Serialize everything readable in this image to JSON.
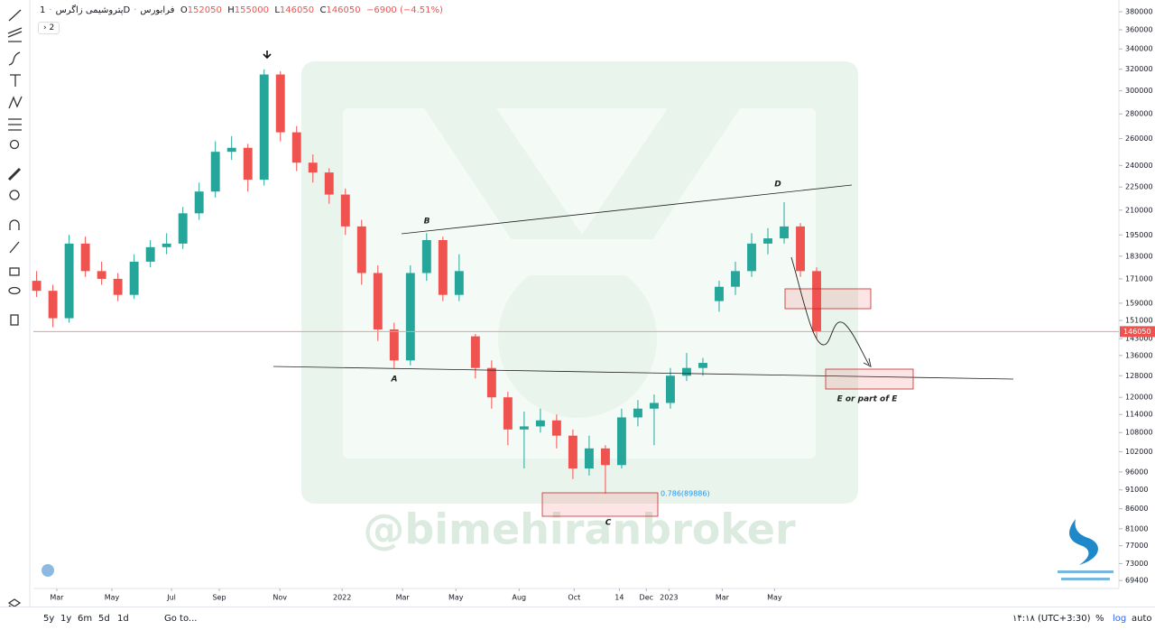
{
  "header": {
    "symbol": "پتروشیمی زاگرس",
    "interval": "1D",
    "exchange": "فرابورس",
    "o_label": "O",
    "open": 152050,
    "h_label": "H",
    "high": 155000,
    "l_label": "L",
    "low": 146050,
    "c_label": "C",
    "close": 146050,
    "change": "−6900",
    "change_pct": "(−4.51%)",
    "indicators_toggle": "2"
  },
  "chart_data": {
    "type": "candlestick",
    "up_color": "#26a69a",
    "down_color": "#ef5350",
    "log_scale": true,
    "ylim": [
      67760,
      388300
    ],
    "yticks": [
      380000,
      360000,
      340000,
      320000,
      300000,
      280000,
      260000,
      240000,
      225000,
      210000,
      195000,
      183000,
      171000,
      159000,
      151000,
      143000,
      136000,
      128000,
      120000,
      114000,
      108000,
      102000,
      96000,
      91000,
      86000,
      81000,
      77000,
      73000,
      69400
    ],
    "xlim": [
      -0.2,
      66.6
    ],
    "xticks": [
      {
        "value": 1.24,
        "label": "Mar"
      },
      {
        "value": 4.63,
        "label": "May"
      },
      {
        "value": 8.3,
        "label": "Jul"
      },
      {
        "value": 11.24,
        "label": "Sep"
      },
      {
        "value": 14.97,
        "label": "Nov"
      },
      {
        "value": 18.8,
        "label": "2022"
      },
      {
        "value": 22.52,
        "label": "Mar"
      },
      {
        "value": 25.8,
        "label": "May"
      },
      {
        "value": 29.69,
        "label": "Aug"
      },
      {
        "value": 33.08,
        "label": "Oct"
      },
      {
        "value": 35.86,
        "label": "14"
      },
      {
        "value": 37.52,
        "label": "Dec"
      },
      {
        "value": 38.91,
        "label": "2023"
      },
      {
        "value": 42.19,
        "label": "Mar"
      },
      {
        "value": 45.41,
        "label": "May"
      }
    ],
    "candles": [
      {
        "o": 170000,
        "h": 175000,
        "l": 162000,
        "c": 165000
      },
      {
        "o": 165000,
        "h": 168000,
        "l": 148000,
        "c": 152000
      },
      {
        "o": 152000,
        "h": 195000,
        "l": 150000,
        "c": 190000
      },
      {
        "o": 190000,
        "h": 194000,
        "l": 172000,
        "c": 175000
      },
      {
        "o": 175000,
        "h": 180000,
        "l": 168000,
        "c": 171000
      },
      {
        "o": 171000,
        "h": 174000,
        "l": 160000,
        "c": 163000
      },
      {
        "o": 163000,
        "h": 184000,
        "l": 161000,
        "c": 180000
      },
      {
        "o": 180000,
        "h": 192000,
        "l": 177000,
        "c": 188000
      },
      {
        "o": 188000,
        "h": 196000,
        "l": 184000,
        "c": 190000
      },
      {
        "o": 190000,
        "h": 212000,
        "l": 187000,
        "c": 208000
      },
      {
        "o": 208000,
        "h": 228000,
        "l": 204000,
        "c": 222000
      },
      {
        "o": 222000,
        "h": 258000,
        "l": 218000,
        "c": 250000
      },
      {
        "o": 250000,
        "h": 262000,
        "l": 244000,
        "c": 253000
      },
      {
        "o": 253000,
        "h": 256000,
        "l": 222000,
        "c": 230000
      },
      {
        "o": 230000,
        "h": 320000,
        "l": 226000,
        "c": 315000
      },
      {
        "o": 315000,
        "h": 318000,
        "l": 258000,
        "c": 265000
      },
      {
        "o": 265000,
        "h": 270000,
        "l": 236000,
        "c": 242000
      },
      {
        "o": 242000,
        "h": 248000,
        "l": 228000,
        "c": 235000
      },
      {
        "o": 235000,
        "h": 238000,
        "l": 214000,
        "c": 220000
      },
      {
        "o": 220000,
        "h": 224000,
        "l": 195000,
        "c": 200000
      },
      {
        "o": 200000,
        "h": 204000,
        "l": 168000,
        "c": 174000
      },
      {
        "o": 174000,
        "h": 178000,
        "l": 142000,
        "c": 147000
      },
      {
        "o": 147000,
        "h": 150000,
        "l": 131000,
        "c": 134000
      },
      {
        "o": 134000,
        "h": 178000,
        "l": 132000,
        "c": 174000
      },
      {
        "o": 174000,
        "h": 196000,
        "l": 170000,
        "c": 192000
      },
      {
        "o": 192000,
        "h": 194000,
        "l": 160000,
        "c": 163000
      },
      {
        "o": 163000,
        "h": 184000,
        "l": 160000,
        "c": 175000
      },
      {
        "o": 144000,
        "h": 145000,
        "l": 127000,
        "c": 131000
      },
      {
        "o": 131000,
        "h": 134000,
        "l": 116000,
        "c": 120000
      },
      {
        "o": 120000,
        "h": 122000,
        "l": 104000,
        "c": 109000
      },
      {
        "o": 109000,
        "h": 115000,
        "l": 97000,
        "c": 110000
      },
      {
        "o": 110000,
        "h": 116000,
        "l": 108000,
        "c": 112000
      },
      {
        "o": 112000,
        "h": 114000,
        "l": 103000,
        "c": 107000
      },
      {
        "o": 107000,
        "h": 109000,
        "l": 94000,
        "c": 97000
      },
      {
        "o": 97000,
        "h": 107000,
        "l": 95000,
        "c": 103000
      },
      {
        "o": 103000,
        "h": 104000,
        "l": 90000,
        "c": 98000
      },
      {
        "o": 98000,
        "h": 116000,
        "l": 97000,
        "c": 113000
      },
      {
        "o": 113000,
        "h": 119000,
        "l": 110000,
        "c": 116000
      },
      {
        "o": 116000,
        "h": 121000,
        "l": 104000,
        "c": 118000
      },
      {
        "o": 118000,
        "h": 131000,
        "l": 116000,
        "c": 128000
      },
      {
        "o": 128000,
        "h": 137000,
        "l": 126000,
        "c": 131000
      },
      {
        "o": 131000,
        "h": 135000,
        "l": 128000,
        "c": 133000
      },
      {
        "o": 160000,
        "h": 170000,
        "l": 155000,
        "c": 167000
      },
      {
        "o": 167000,
        "h": 180000,
        "l": 163000,
        "c": 175000
      },
      {
        "o": 175000,
        "h": 196000,
        "l": 172000,
        "c": 190000
      },
      {
        "o": 190000,
        "h": 199000,
        "l": 184000,
        "c": 193000
      },
      {
        "o": 193000,
        "h": 215000,
        "l": 190000,
        "c": 200000
      },
      {
        "o": 200000,
        "h": 202000,
        "l": 172000,
        "c": 175000
      },
      {
        "o": 175000,
        "h": 177000,
        "l": 143000,
        "c": 146050
      }
    ],
    "last_price": 146050,
    "annotations": [
      "A",
      "B",
      "C",
      "D",
      "E or part of E"
    ],
    "fib_label": "0.786(89886)"
  },
  "watermark": "@bimehiranbroker",
  "bottom": {
    "ranges": [
      "5y",
      "1y",
      "6m",
      "5d",
      "1d"
    ],
    "goto": "Go to...",
    "time": "۱۴:۱۸ (UTC+3:30)",
    "percent": "%",
    "log": "log",
    "auto": "auto"
  }
}
